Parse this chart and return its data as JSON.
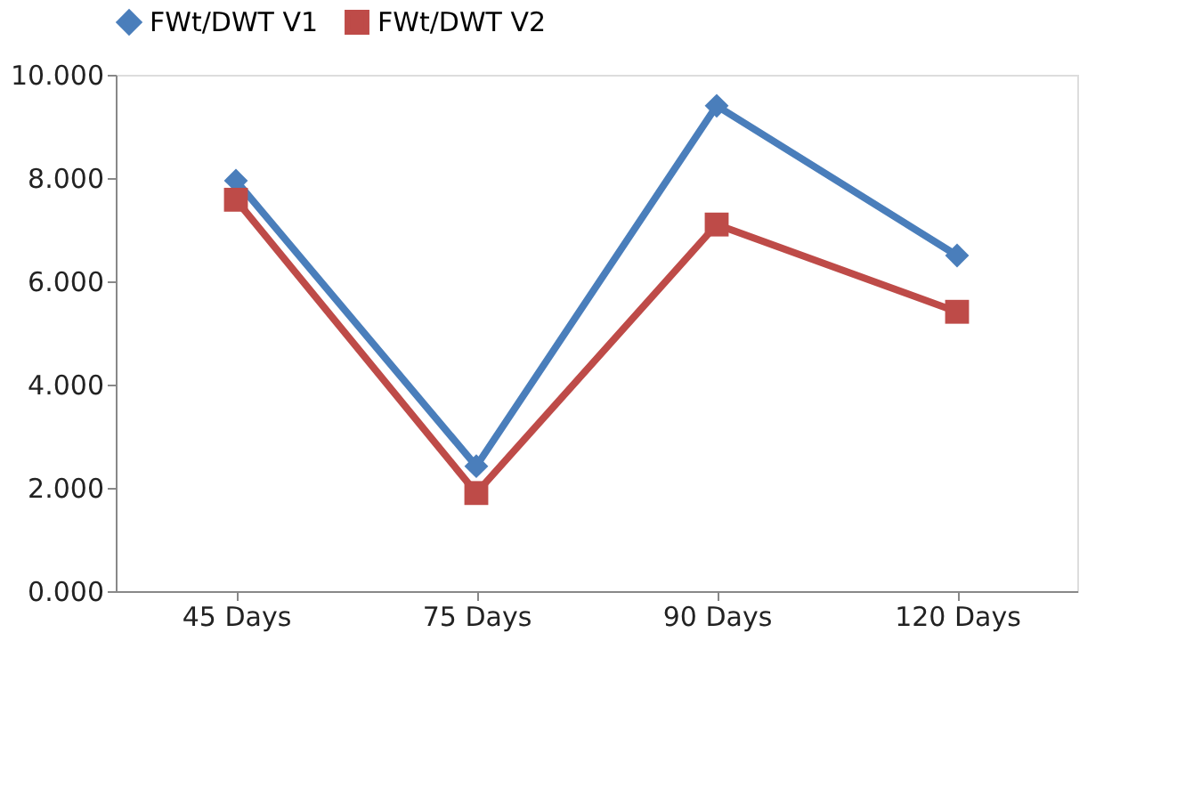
{
  "chart_data": {
    "type": "line",
    "categories": [
      "45 Days",
      "75 Days",
      "90 Days",
      "120 Days"
    ],
    "series": [
      {
        "name": "FWt/DWT V1",
        "color": "#4a7ebb",
        "marker": "diamond",
        "values": [
          7.95,
          2.42,
          9.4,
          6.5
        ]
      },
      {
        "name": "FWt/DWT V2",
        "color": "#be4b48",
        "marker": "square",
        "values": [
          7.58,
          1.9,
          7.1,
          5.41
        ]
      }
    ],
    "ylim": [
      0,
      10
    ],
    "yticks": [
      {
        "value": 0,
        "label": "0.000"
      },
      {
        "value": 2,
        "label": "2.000"
      },
      {
        "value": 4,
        "label": "4.000"
      },
      {
        "value": 6,
        "label": "6.000"
      },
      {
        "value": 8,
        "label": "8.000"
      },
      {
        "value": 10,
        "label": "10.000"
      }
    ],
    "grid": false,
    "legend": "top",
    "line_style": "solid"
  }
}
